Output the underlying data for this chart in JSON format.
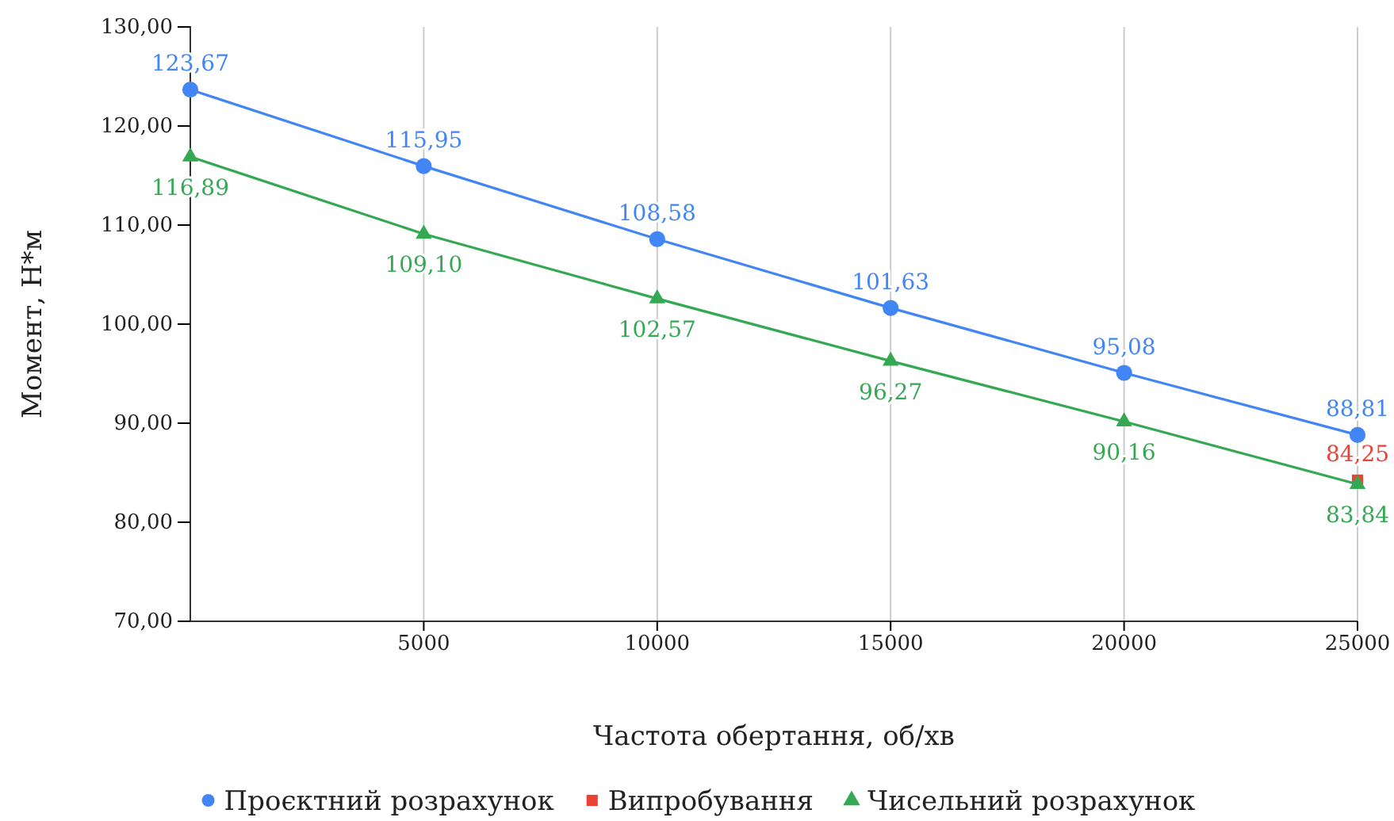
{
  "chart_data": {
    "type": "line",
    "xlabel": "Частота обертання, об/хв",
    "ylabel": "Момент, Н*м",
    "x": [
      0,
      5000,
      10000,
      15000,
      20000,
      25000
    ],
    "xlim": [
      0,
      25000
    ],
    "xticks": [
      5000,
      10000,
      15000,
      20000,
      25000
    ],
    "ylim": [
      70,
      130
    ],
    "yticks": [
      {
        "value": 70,
        "label": "70,00"
      },
      {
        "value": 80,
        "label": "80,00"
      },
      {
        "value": 90,
        "label": "90,00"
      },
      {
        "value": 100,
        "label": "100,00"
      },
      {
        "value": 110,
        "label": "110,00"
      },
      {
        "value": 120,
        "label": "120,00"
      },
      {
        "value": 130,
        "label": "130,00"
      }
    ],
    "grid": "x",
    "legend": "bottom",
    "series": [
      {
        "name": "Проєктний розрахунок",
        "color": "#4285f4",
        "marker": "circle",
        "values": [
          123.67,
          115.95,
          108.58,
          101.63,
          95.08,
          88.81
        ],
        "value_labels": [
          "123,67",
          "115,95",
          "108,58",
          "101,63",
          "95,08",
          "88,81"
        ]
      },
      {
        "name": "Випробування",
        "type": "scatter",
        "color": "#ea4335",
        "marker": "square",
        "x": [
          25000
        ],
        "values": [
          84.25
        ],
        "value_labels": [
          "84,25"
        ]
      },
      {
        "name": "Чисельний розрахунок",
        "color": "#34a853",
        "marker": "triangle",
        "values": [
          116.89,
          109.1,
          102.57,
          96.27,
          90.16,
          83.84
        ],
        "value_labels": [
          "116,89",
          "109,10",
          "102,57",
          "96,27",
          "90,16",
          "83,84"
        ]
      }
    ]
  }
}
